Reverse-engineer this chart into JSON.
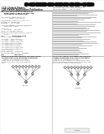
{
  "background_color": "#f5f5f5",
  "page_bg": "#ffffff",
  "text_dark": "#2a2a2a",
  "text_mid": "#555555",
  "text_light": "#888888",
  "line_color": "#aaaaaa",
  "barcode_color": "#111111",
  "node_fill": "#e8e8e8",
  "node_edge": "#666666",
  "node_bottom_fill": "#dddddd"
}
